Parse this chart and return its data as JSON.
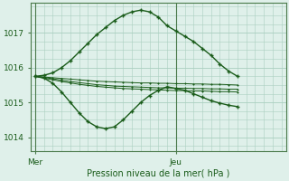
{
  "xlabel": "Pression niveau de la mer( hPa )",
  "bg_color": "#dff0ea",
  "grid_color": "#aacfbf",
  "line_color": "#1a5c1a",
  "spine_color": "#4a7a4a",
  "xtick_labels": [
    "Mer",
    "",
    "Jeu",
    ""
  ],
  "xtick_positions": [
    0,
    12,
    16,
    28
  ],
  "yticks": [
    1014,
    1015,
    1016,
    1017
  ],
  "ylim": [
    1013.6,
    1017.85
  ],
  "xlim": [
    -0.5,
    28.5
  ],
  "vline_positions": [
    0,
    16
  ],
  "series": [
    [
      1015.75,
      1015.78,
      1015.85,
      1016.0,
      1016.2,
      1016.45,
      1016.7,
      1016.95,
      1017.15,
      1017.35,
      1017.5,
      1017.6,
      1017.65,
      1017.6,
      1017.45,
      1017.2,
      1017.05,
      1016.9,
      1016.75,
      1016.55,
      1016.35,
      1016.1,
      1015.9,
      1015.75
    ],
    [
      1015.75,
      1015.7,
      1015.55,
      1015.3,
      1015.0,
      1014.7,
      1014.45,
      1014.3,
      1014.25,
      1014.3,
      1014.5,
      1014.75,
      1015.0,
      1015.2,
      1015.35,
      1015.45,
      1015.4,
      1015.35,
      1015.25,
      1015.15,
      1015.05,
      1014.98,
      1014.92,
      1014.88
    ],
    [
      1015.75,
      1015.73,
      1015.71,
      1015.69,
      1015.67,
      1015.65,
      1015.63,
      1015.61,
      1015.6,
      1015.59,
      1015.58,
      1015.57,
      1015.56,
      1015.56,
      1015.55,
      1015.55,
      1015.54,
      1015.54,
      1015.53,
      1015.53,
      1015.52,
      1015.52,
      1015.51,
      1015.5
    ],
    [
      1015.75,
      1015.72,
      1015.68,
      1015.64,
      1015.6,
      1015.57,
      1015.54,
      1015.51,
      1015.49,
      1015.47,
      1015.46,
      1015.45,
      1015.44,
      1015.43,
      1015.42,
      1015.42,
      1015.41,
      1015.41,
      1015.4,
      1015.4,
      1015.39,
      1015.39,
      1015.38,
      1015.38
    ],
    [
      1015.75,
      1015.7,
      1015.65,
      1015.6,
      1015.56,
      1015.52,
      1015.49,
      1015.46,
      1015.44,
      1015.42,
      1015.4,
      1015.39,
      1015.38,
      1015.37,
      1015.36,
      1015.35,
      1015.34,
      1015.34,
      1015.33,
      1015.33,
      1015.32,
      1015.31,
      1015.31,
      1015.3
    ]
  ]
}
